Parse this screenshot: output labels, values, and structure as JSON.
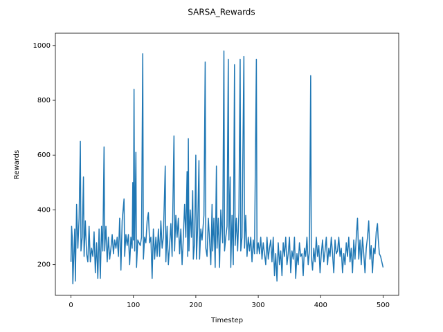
{
  "chart_data": {
    "type": "line",
    "title": "SARSA_Rewards",
    "x_label": "Timestep",
    "y_label": "Rewards",
    "color": "#1f77b4",
    "x": [
      0,
      1,
      2,
      3,
      4,
      6,
      7,
      9,
      11,
      13,
      15,
      16,
      18,
      20,
      21,
      23,
      25,
      27,
      29,
      31,
      33,
      35,
      37,
      39,
      41,
      43,
      45,
      47,
      49,
      51,
      53,
      54,
      56,
      58,
      60,
      62,
      64,
      66,
      68,
      70,
      72,
      74,
      76,
      78,
      80,
      82,
      85,
      86,
      88,
      90,
      92,
      94,
      96,
      98,
      99,
      100,
      101,
      102,
      104,
      105,
      107,
      109,
      111,
      113,
      115,
      116,
      118,
      120,
      122,
      124,
      126,
      128,
      130,
      132,
      134,
      136,
      138,
      140,
      142,
      144,
      146,
      148,
      151,
      152,
      154,
      156,
      158,
      160,
      162,
      165,
      166,
      168,
      170,
      172,
      174,
      176,
      178,
      180,
      182,
      184,
      186,
      187,
      188,
      189,
      191,
      193,
      195,
      196,
      198,
      200,
      201,
      203,
      205,
      206,
      208,
      210,
      213,
      215,
      216,
      218,
      220,
      222,
      224,
      226,
      227,
      229,
      231,
      233,
      234,
      236,
      238,
      240,
      243,
      245,
      246,
      248,
      250,
      252,
      253,
      255,
      256,
      258,
      260,
      262,
      263,
      265,
      267,
      269,
      271,
      272,
      274,
      277,
      278,
      280,
      282,
      284,
      286,
      288,
      290,
      292,
      294,
      297,
      298,
      300,
      302,
      304,
      306,
      308,
      310,
      312,
      314,
      316,
      318,
      320,
      322,
      324,
      326,
      328,
      330,
      332,
      334,
      336,
      338,
      340,
      342,
      344,
      346,
      348,
      350,
      352,
      354,
      356,
      358,
      360,
      362,
      364,
      366,
      368,
      370,
      372,
      374,
      376,
      378,
      380,
      382,
      384,
      385,
      387,
      389,
      391,
      393,
      395,
      397,
      399,
      401,
      403,
      405,
      407,
      409,
      411,
      413,
      415,
      417,
      419,
      421,
      423,
      425,
      427,
      429,
      431,
      433,
      435,
      437,
      439,
      441,
      443,
      445,
      447,
      449,
      451,
      453,
      455,
      457,
      459,
      461,
      463,
      465,
      467,
      469,
      471,
      473,
      475,
      477,
      479,
      481,
      483,
      485,
      487,
      489,
      491,
      492,
      494,
      496,
      498,
      500
    ],
    "values": [
      210,
      340,
      300,
      130,
      200,
      330,
      140,
      420,
      260,
      370,
      650,
      250,
      300,
      520,
      230,
      360,
      240,
      210,
      340,
      210,
      260,
      230,
      320,
      170,
      280,
      150,
      330,
      150,
      340,
      250,
      630,
      250,
      340,
      210,
      300,
      220,
      260,
      310,
      240,
      290,
      260,
      300,
      230,
      370,
      180,
      360,
      440,
      230,
      310,
      270,
      310,
      200,
      300,
      260,
      500,
      290,
      840,
      250,
      610,
      190,
      290,
      280,
      270,
      300,
      970,
      220,
      300,
      280,
      360,
      390,
      280,
      300,
      150,
      330,
      220,
      300,
      230,
      330,
      230,
      360,
      260,
      300,
      560,
      210,
      340,
      200,
      270,
      350,
      230,
      670,
      250,
      380,
      300,
      370,
      240,
      330,
      200,
      300,
      420,
      300,
      540,
      230,
      660,
      250,
      400,
      300,
      470,
      220,
      280,
      600,
      220,
      340,
      580,
      220,
      330,
      290,
      380,
      940,
      260,
      230,
      370,
      290,
      200,
      420,
      250,
      370,
      190,
      560,
      260,
      370,
      190,
      400,
      280,
      980,
      250,
      300,
      340,
      950,
      290,
      520,
      190,
      380,
      200,
      930,
      270,
      370,
      250,
      390,
      950,
      250,
      300,
      960,
      260,
      380,
      230,
      300,
      250,
      300,
      210,
      290,
      240,
      950,
      240,
      280,
      240,
      300,
      220,
      280,
      240,
      200,
      300,
      220,
      260,
      290,
      210,
      300,
      160,
      240,
      140,
      280,
      200,
      250,
      160,
      280,
      230,
      300,
      200,
      240,
      300,
      170,
      250,
      220,
      300,
      150,
      240,
      200,
      280,
      230,
      240,
      160,
      260,
      230,
      300,
      200,
      250,
      890,
      230,
      180,
      260,
      210,
      300,
      230,
      270,
      170,
      240,
      290,
      210,
      250,
      300,
      200,
      260,
      230,
      300,
      240,
      170,
      290,
      240,
      250,
      300,
      230,
      260,
      170,
      240,
      200,
      280,
      230,
      300,
      210,
      260,
      170,
      290,
      220,
      300,
      370,
      220,
      290,
      200,
      300,
      240,
      170,
      260,
      300,
      360,
      220,
      270,
      170,
      260,
      240,
      320,
      350,
      300,
      240,
      230,
      210,
      190
    ],
    "xlim": [
      -25,
      525
    ],
    "ylim": [
      88,
      1045
    ],
    "xticks": [
      0,
      100,
      200,
      300,
      400,
      500
    ],
    "yticks": [
      200,
      400,
      600,
      800,
      1000
    ]
  }
}
